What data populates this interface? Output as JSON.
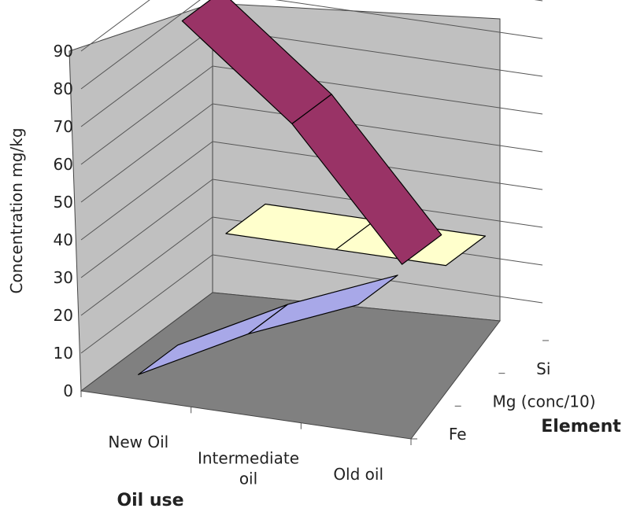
{
  "chart_data": {
    "type": "line",
    "style": "3d-ribbon",
    "categories": [
      "New Oil",
      "Intermediate oil",
      "Old oil"
    ],
    "category_lines": [
      [
        "New Oil"
      ],
      [
        "Intermediate",
        "oil"
      ],
      [
        "Old oil"
      ]
    ],
    "series": [
      {
        "name": "Fe",
        "values": [
          6,
          21,
          33
        ],
        "color": "#a8a8e8"
      },
      {
        "name": "Mg (conc/10)",
        "values": [
          91,
          68,
          35
        ],
        "color": "#993366"
      },
      {
        "name": "Si",
        "values": [
          26,
          26,
          26
        ],
        "color": "#ffffcc"
      }
    ],
    "ylabel": "Concentration mg/kg",
    "xlabel": "Oil use",
    "zlabel": "Element",
    "ylim": [
      0,
      90
    ],
    "yticks": [
      0,
      10,
      20,
      30,
      40,
      50,
      60,
      70,
      80,
      90
    ],
    "grid": true,
    "colors": {
      "back_wall": "#c0c0c0",
      "floor": "#808080",
      "gridline": "#555555"
    }
  }
}
